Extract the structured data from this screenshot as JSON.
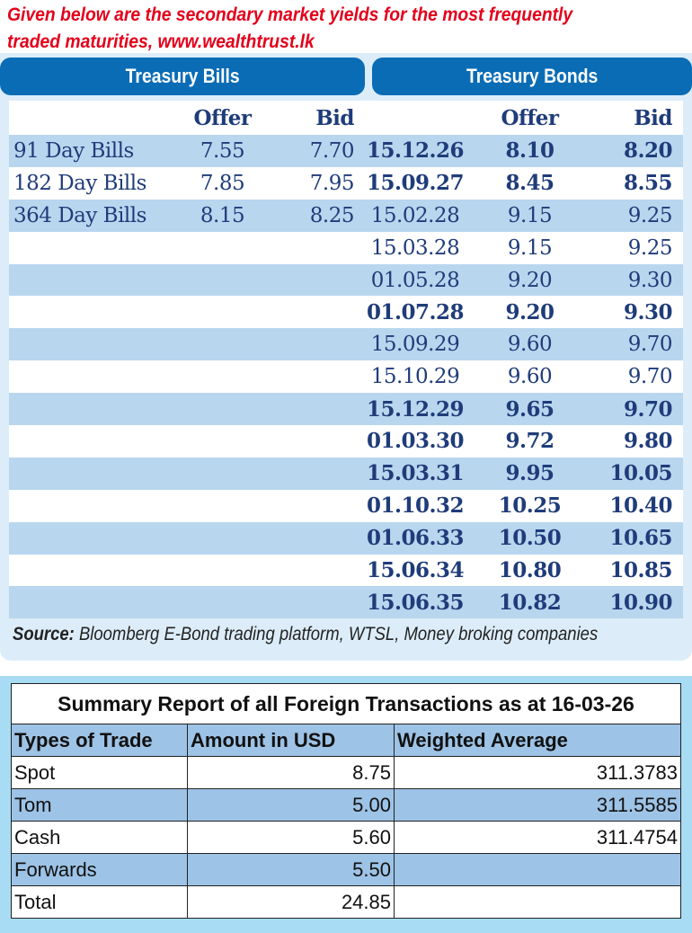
{
  "title": {
    "line1": "Given below are the secondary market yields for the most frequently",
    "line2": "traded maturities, www.wealthtrust.lk"
  },
  "bills_header": "Treasury Bills",
  "bonds_header": "Treasury Bonds",
  "col_offer": "Offer",
  "col_bid": "Bid",
  "bills": [
    {
      "name": "91 Day Bills",
      "offer": "7.55",
      "bid": "7.70"
    },
    {
      "name": "182 Day Bills",
      "offer": "7.85",
      "bid": "7.95"
    },
    {
      "name": "364 Day Bills",
      "offer": "8.15",
      "bid": "8.25"
    }
  ],
  "bonds": [
    {
      "maturity": "15.12.26",
      "offer": "8.10",
      "bid": "8.20",
      "bold": true
    },
    {
      "maturity": "15.09.27",
      "offer": "8.45",
      "bid": "8.55",
      "bold": true
    },
    {
      "maturity": "15.02.28",
      "offer": "9.15",
      "bid": "9.25",
      "bold": false
    },
    {
      "maturity": "15.03.28",
      "offer": "9.15",
      "bid": "9.25",
      "bold": false
    },
    {
      "maturity": "01.05.28",
      "offer": "9.20",
      "bid": "9.30",
      "bold": false
    },
    {
      "maturity": "01.07.28",
      "offer": "9.20",
      "bid": "9.30",
      "bold": true
    },
    {
      "maturity": "15.09.29",
      "offer": "9.60",
      "bid": "9.70",
      "bold": false
    },
    {
      "maturity": "15.10.29",
      "offer": "9.60",
      "bid": "9.70",
      "bold": false
    },
    {
      "maturity": "15.12.29",
      "offer": "9.65",
      "bid": "9.70",
      "bold": true
    },
    {
      "maturity": "01.03.30",
      "offer": "9.72",
      "bid": "9.80",
      "bold": true
    },
    {
      "maturity": "15.03.31",
      "offer": "9.95",
      "bid": "10.05",
      "bold": true
    },
    {
      "maturity": "01.10.32",
      "offer": "10.25",
      "bid": "10.40",
      "bold": true
    },
    {
      "maturity": "01.06.33",
      "offer": "10.50",
      "bid": "10.65",
      "bold": true
    },
    {
      "maturity": "15.06.34",
      "offer": "10.80",
      "bid": "10.85",
      "bold": true
    },
    {
      "maturity": "15.06.35",
      "offer": "10.82",
      "bid": "10.90",
      "bold": true
    }
  ],
  "source": {
    "label": "Source:",
    "text": " Bloomberg E-Bond trading platform, WTSL, Money broking companies"
  },
  "fx": {
    "title": "Summary Report of all Foreign Transactions as at 16-03-26",
    "headers": [
      "Types of Trade",
      "Amount in USD",
      "Weighted Average"
    ],
    "rows": [
      [
        "Spot",
        "8.75",
        "311.3783"
      ],
      [
        "Tom",
        "5.00",
        "311.5585"
      ],
      [
        "Cash",
        "5.60",
        "311.4754"
      ],
      [
        "Forwards",
        "5.50",
        ""
      ],
      [
        "Total",
        "24.85",
        ""
      ]
    ]
  },
  "colors": {
    "title": "#e3001b",
    "header": "#0a6cb5",
    "row_alt": "#b9d6ef",
    "fx_alt": "#9dc3e6"
  }
}
